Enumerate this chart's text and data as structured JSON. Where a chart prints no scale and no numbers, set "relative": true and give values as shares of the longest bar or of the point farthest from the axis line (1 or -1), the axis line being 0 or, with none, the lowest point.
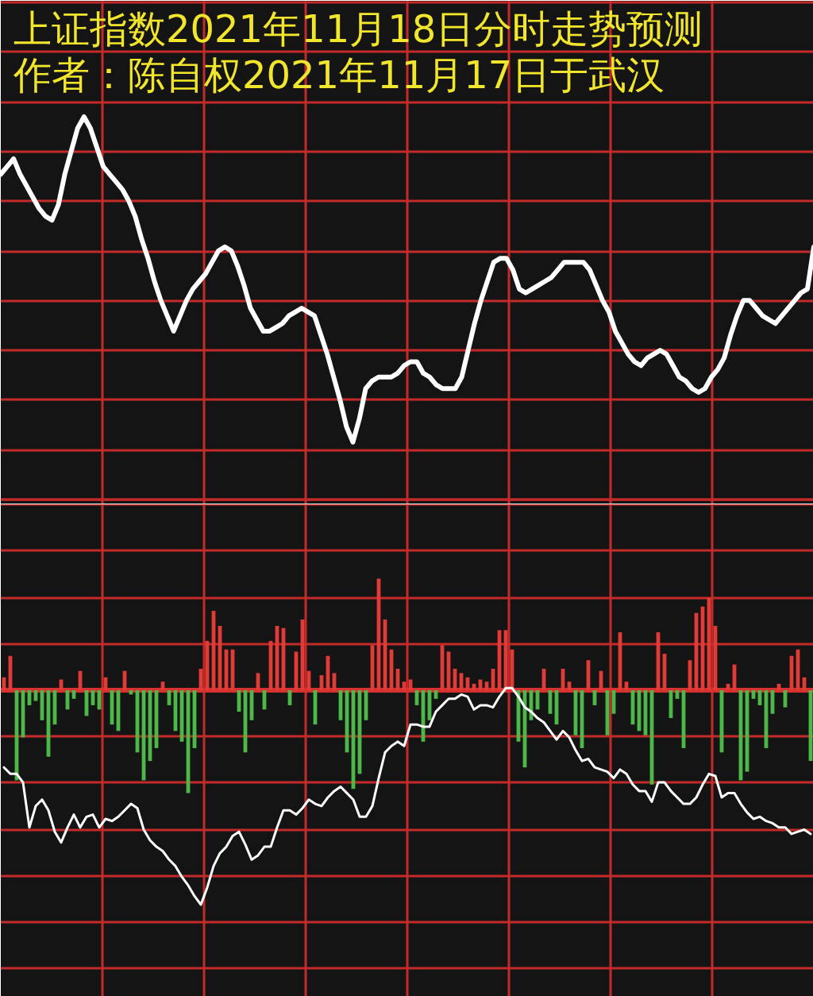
{
  "chart_data": [
    {
      "type": "line",
      "title": "上证指数2021年11月18日分时走势预测",
      "subtitle": "作者：陈自权2021年11月17日于武汉",
      "relative": true,
      "grid": true,
      "categories": [
        null,
        null,
        null,
        null,
        null,
        null,
        null,
        null,
        null,
        null,
        null,
        null,
        null,
        null,
        null,
        null,
        null,
        null,
        null,
        null,
        null,
        null,
        null,
        null,
        null,
        null,
        null,
        null,
        null,
        null,
        null,
        null,
        null,
        null,
        null,
        null,
        null,
        null,
        null,
        null,
        null,
        null,
        null,
        null,
        null,
        null,
        null,
        null,
        null,
        null,
        null,
        null,
        null,
        null,
        null,
        null,
        null,
        null,
        null,
        null,
        null,
        null,
        null,
        null,
        null,
        null,
        null,
        null,
        null,
        null,
        null,
        null,
        null,
        null,
        null,
        null,
        null,
        null,
        null,
        null,
        null,
        null,
        null,
        null,
        null,
        null,
        null,
        null,
        null,
        null,
        null,
        null,
        null,
        null,
        null,
        null,
        null,
        null,
        null,
        null,
        null,
        null,
        null,
        null,
        null,
        null,
        null,
        null,
        null,
        null,
        null,
        null,
        null,
        null,
        null,
        null,
        null,
        null,
        null,
        null,
        null,
        null,
        null,
        null,
        null,
        null,
        null,
        null
      ],
      "series": [
        {
          "color": "#ffffff",
          "values": [
            0.85,
            0.87,
            0.89,
            0.85,
            0.82,
            0.79,
            0.76,
            0.74,
            0.73,
            0.77,
            0.85,
            0.91,
            0.97,
            1,
            0.97,
            0.92,
            0.87,
            0.85,
            0.83,
            0.81,
            0.78,
            0.74,
            0.68,
            0.63,
            0.57,
            0.52,
            0.48,
            0.44,
            0.48,
            0.52,
            0.55,
            0.57,
            0.59,
            0.62,
            0.65,
            0.66,
            0.65,
            0.61,
            0.56,
            0.5,
            0.47,
            0.44,
            0.44,
            0.45,
            0.46,
            0.48,
            0.49,
            0.5,
            0.49,
            0.48,
            0.43,
            0.38,
            0.32,
            0.26,
            0.19,
            0.15,
            0.21,
            0.29,
            0.31,
            0.32,
            0.32,
            0.32,
            0.33,
            0.35,
            0.36,
            0.36,
            0.33,
            0.32,
            0.3,
            0.29,
            0.29,
            0.29,
            0.32,
            0.39,
            0.46,
            0.52,
            0.57,
            0.62,
            0.63,
            0.63,
            0.6,
            0.55,
            0.54,
            0.55,
            0.56,
            0.57,
            0.58,
            0.6,
            0.62,
            0.62,
            0.62,
            0.62,
            0.6,
            0.56,
            0.52,
            0.49,
            0.44,
            0.41,
            0.38,
            0.36,
            0.35,
            0.37,
            0.38,
            0.39,
            0.38,
            0.35,
            0.32,
            0.31,
            0.29,
            0.28,
            0.29,
            0.32,
            0.34,
            0.37,
            0.43,
            0.48,
            0.52,
            0.52,
            0.5,
            0.48,
            0.47,
            0.46,
            0.48,
            0.5,
            0.52,
            0.54,
            0.55,
            0.66
          ]
        }
      ]
    },
    {
      "type": "bar",
      "relative": true,
      "grid": true,
      "ref_lines": [
        {
          "axis": "y",
          "value": 0,
          "color": "#d63030"
        }
      ],
      "categories": [
        null,
        null,
        null,
        null,
        null,
        null,
        null,
        null,
        null,
        null,
        null,
        null,
        null,
        null,
        null,
        null,
        null,
        null,
        null,
        null,
        null,
        null,
        null,
        null,
        null,
        null,
        null,
        null,
        null,
        null,
        null,
        null,
        null,
        null,
        null,
        null,
        null,
        null,
        null,
        null,
        null,
        null,
        null,
        null,
        null,
        null,
        null,
        null,
        null,
        null,
        null,
        null,
        null,
        null,
        null,
        null,
        null,
        null,
        null,
        null,
        null,
        null,
        null,
        null,
        null,
        null,
        null,
        null,
        null,
        null,
        null,
        null,
        null,
        null,
        null,
        null,
        null,
        null,
        null,
        null,
        null,
        null,
        null,
        null,
        null,
        null,
        null,
        null,
        null,
        null,
        null,
        null,
        null,
        null,
        null,
        null,
        null,
        null,
        null,
        null,
        null,
        null,
        null,
        null,
        null,
        null,
        null,
        null,
        null,
        null,
        null,
        null,
        null,
        null,
        null,
        null,
        null,
        null,
        null,
        null,
        null,
        null,
        null,
        null,
        null,
        null,
        null,
        null
      ],
      "series": [
        {
          "color": "#e23b36",
          "values": [
            0.06,
            0.16,
            null,
            null,
            null,
            null,
            null,
            null,
            null,
            0.05,
            null,
            null,
            0.09,
            null,
            null,
            null,
            0.06,
            null,
            null,
            0.09,
            null,
            null,
            null,
            null,
            null,
            0.04,
            null,
            null,
            null,
            null,
            null,
            0.1,
            0.23,
            0.37,
            0.3,
            0.19,
            0.19,
            null,
            null,
            null,
            0.08,
            null,
            0.23,
            0.3,
            0.29,
            null,
            0.18,
            0.33,
            0.09,
            null,
            0.07,
            0.16,
            0.08,
            null,
            null,
            null,
            null,
            null,
            0.21,
            0.52,
            0.33,
            0.19,
            0.1,
            0.04,
            0.05,
            null,
            null,
            null,
            null,
            0.21,
            0.18,
            0.1,
            0.08,
            0.06,
            0.03,
            0.05,
            0.04,
            0.1,
            0.28,
            0.28,
            0.19,
            null,
            null,
            null,
            null,
            0.1,
            null,
            null,
            0.1,
            0.04,
            null,
            null,
            0.14,
            null,
            0.09,
            null,
            null,
            0.27,
            0.04,
            null,
            null,
            null,
            null,
            0.27,
            0.17,
            null,
            null,
            null,
            0.14,
            0.36,
            0.39,
            0.43,
            0.3,
            null,
            0.03,
            0.12,
            null,
            null,
            null,
            null,
            null,
            null,
            0.03,
            null,
            0.16,
            0.19,
            0.06,
            null
          ]
        },
        {
          "color": "#4db848",
          "values": [
            null,
            null,
            -0.42,
            -0.22,
            -0.07,
            -0.05,
            -0.14,
            -0.31,
            -0.16,
            null,
            -0.09,
            -0.04,
            null,
            -0.12,
            -0.07,
            -0.09,
            null,
            -0.16,
            -0.19,
            null,
            -0.02,
            -0.29,
            -0.42,
            -0.33,
            -0.27,
            null,
            -0.07,
            -0.19,
            -0.24,
            -0.48,
            -0.27,
            null,
            null,
            null,
            null,
            null,
            null,
            -0.1,
            -0.29,
            -0.14,
            null,
            -0.09,
            null,
            null,
            null,
            -0.07,
            null,
            null,
            null,
            -0.16,
            null,
            null,
            null,
            -0.14,
            -0.29,
            -0.46,
            -0.39,
            -0.14,
            null,
            null,
            null,
            null,
            null,
            null,
            null,
            -0.07,
            -0.24,
            -0.14,
            -0.04,
            null,
            null,
            null,
            null,
            null,
            null,
            null,
            null,
            null,
            null,
            null,
            null,
            -0.24,
            -0.36,
            -0.14,
            -0.09,
            null,
            -0.11,
            -0.16,
            null,
            null,
            -0.21,
            -0.27,
            null,
            -0.07,
            null,
            -0.21,
            -0.11,
            null,
            null,
            -0.16,
            -0.19,
            -0.21,
            -0.44,
            null,
            null,
            -0.13,
            -0.04,
            -0.27,
            null,
            null,
            null,
            null,
            null,
            -0.29,
            null,
            null,
            -0.42,
            -0.38,
            -0.04,
            -0.07,
            -0.27,
            -0.11,
            null,
            -0.08,
            null,
            null,
            null,
            -0.33
          ]
        },
        {
          "type": "line",
          "color": "#ffffff",
          "values": [
            -0.36,
            -0.39,
            -0.39,
            -0.43,
            -0.64,
            -0.54,
            -0.51,
            -0.56,
            -0.66,
            -0.71,
            -0.64,
            -0.58,
            -0.64,
            -0.59,
            -0.58,
            -0.64,
            -0.6,
            -0.61,
            -0.59,
            -0.56,
            -0.53,
            -0.55,
            -0.65,
            -0.7,
            -0.73,
            -0.75,
            -0.79,
            -0.82,
            -0.87,
            -0.91,
            -0.96,
            -1,
            -0.92,
            -0.82,
            -0.76,
            -0.73,
            -0.68,
            -0.66,
            -0.72,
            -0.79,
            -0.77,
            -0.73,
            -0.73,
            -0.64,
            -0.56,
            -0.56,
            -0.58,
            -0.55,
            -0.51,
            -0.53,
            -0.54,
            -0.5,
            -0.47,
            -0.45,
            -0.48,
            -0.51,
            -0.59,
            -0.59,
            -0.54,
            -0.41,
            -0.29,
            -0.26,
            -0.24,
            -0.26,
            -0.16,
            -0.16,
            -0.17,
            -0.17,
            -0.1,
            -0.07,
            -0.04,
            -0.04,
            -0.02,
            -0.03,
            -0.09,
            -0.07,
            -0.07,
            -0.08,
            -0.03,
            0.01,
            0.01,
            -0.03,
            -0.08,
            -0.1,
            -0.13,
            -0.15,
            -0.19,
            -0.23,
            -0.19,
            -0.22,
            -0.28,
            -0.33,
            -0.32,
            -0.36,
            -0.37,
            -0.38,
            -0.41,
            -0.37,
            -0.39,
            -0.44,
            -0.47,
            -0.47,
            -0.52,
            -0.43,
            -0.43,
            -0.47,
            -0.5,
            -0.53,
            -0.53,
            -0.5,
            -0.44,
            -0.39,
            -0.4,
            -0.5,
            -0.48,
            -0.48,
            -0.53,
            -0.57,
            -0.6,
            -0.59,
            -0.61,
            -0.62,
            -0.64,
            -0.64,
            -0.67,
            -0.66,
            -0.65,
            -0.67
          ]
        }
      ]
    }
  ]
}
